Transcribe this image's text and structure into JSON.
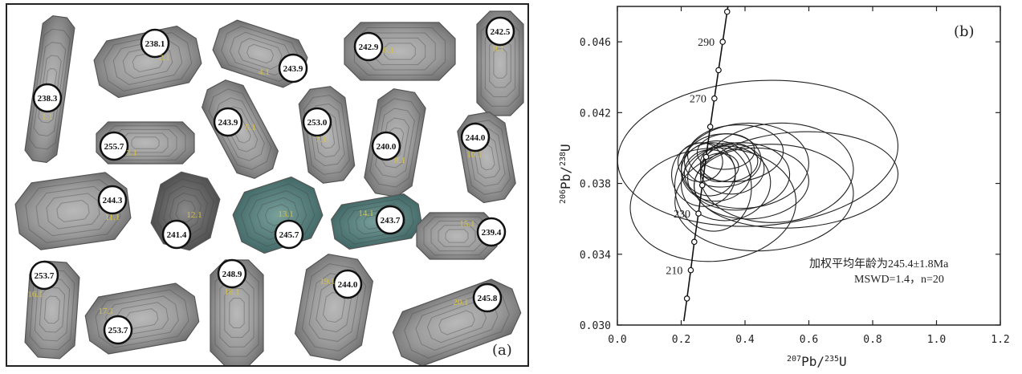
{
  "panel_a": {
    "label": "(a)",
    "grains": [
      {
        "spot": "1.1",
        "age": "238.3"
      },
      {
        "spot": "2.1",
        "age": "238.1"
      },
      {
        "spot": "3.1",
        "age": "255.7"
      },
      {
        "spot": "4.1",
        "age": "243.9"
      },
      {
        "spot": "5.1",
        "age": "243.9"
      },
      {
        "spot": "6.1",
        "age": "242.9"
      },
      {
        "spot": "7.1",
        "age": "253.0"
      },
      {
        "spot": "8.1",
        "age": "240.0"
      },
      {
        "spot": "9.1",
        "age": "242.5"
      },
      {
        "spot": "10.1",
        "age": "244.0"
      },
      {
        "spot": "11.1",
        "age": "244.3"
      },
      {
        "spot": "12.1",
        "age": "241.4"
      },
      {
        "spot": "13.1",
        "age": "245.7"
      },
      {
        "spot": "14.1",
        "age": "243.7"
      },
      {
        "spot": "15.1",
        "age": "239.4"
      },
      {
        "spot": "16.1",
        "age": "253.7"
      },
      {
        "spot": "17.1",
        "age": "253.7"
      },
      {
        "spot": "18.1",
        "age": "248.9"
      },
      {
        "spot": "19.1",
        "age": "244.0"
      },
      {
        "spot": "20.1",
        "age": "245.8"
      }
    ]
  },
  "chart_data": {
    "type": "scatter",
    "panel_label": "(b)",
    "xlabel": "207Pb/235U",
    "ylabel": "206Pb/238U",
    "xlim": [
      0.0,
      1.2
    ],
    "ylim": [
      0.03,
      0.048
    ],
    "x_ticks": [
      "0.0",
      "0.2",
      "0.4",
      "0.6",
      "0.8",
      "1.0",
      "1.2"
    ],
    "y_ticks": [
      "0.030",
      "0.034",
      "0.038",
      "0.042",
      "0.046"
    ],
    "concordia_ages_labeled": [
      "210",
      "230",
      "270",
      "290"
    ],
    "concordia_points": [
      {
        "age": 200,
        "x": 0.218,
        "y": 0.0315
      },
      {
        "age": 210,
        "x": 0.23,
        "y": 0.0331
      },
      {
        "age": 220,
        "x": 0.241,
        "y": 0.0347
      },
      {
        "age": 230,
        "x": 0.254,
        "y": 0.0363
      },
      {
        "age": 240,
        "x": 0.266,
        "y": 0.0379
      },
      {
        "age": 250,
        "x": 0.278,
        "y": 0.0395
      },
      {
        "age": 260,
        "x": 0.291,
        "y": 0.0412
      },
      {
        "age": 270,
        "x": 0.304,
        "y": 0.0428
      },
      {
        "age": 280,
        "x": 0.317,
        "y": 0.0444
      },
      {
        "age": 290,
        "x": 0.33,
        "y": 0.046
      },
      {
        "age": 300,
        "x": 0.344,
        "y": 0.0477
      }
    ],
    "error_ellipses": [
      {
        "cx": 0.44,
        "cy": 0.0397,
        "rx": 0.44,
        "ry": 0.0041
      },
      {
        "cx": 0.56,
        "cy": 0.0382,
        "rx": 0.32,
        "ry": 0.0027
      },
      {
        "cx": 0.46,
        "cy": 0.0372,
        "rx": 0.28,
        "ry": 0.003
      },
      {
        "cx": 0.3,
        "cy": 0.0368,
        "rx": 0.26,
        "ry": 0.0032
      },
      {
        "cx": 0.42,
        "cy": 0.038,
        "rx": 0.18,
        "ry": 0.002
      },
      {
        "cx": 0.38,
        "cy": 0.0384,
        "rx": 0.16,
        "ry": 0.0019
      },
      {
        "cx": 0.34,
        "cy": 0.038,
        "rx": 0.14,
        "ry": 0.0021
      },
      {
        "cx": 0.33,
        "cy": 0.0393,
        "rx": 0.12,
        "ry": 0.0015
      },
      {
        "cx": 0.31,
        "cy": 0.0387,
        "rx": 0.11,
        "ry": 0.0017
      },
      {
        "cx": 0.35,
        "cy": 0.0392,
        "rx": 0.09,
        "ry": 0.0011
      },
      {
        "cx": 0.29,
        "cy": 0.0386,
        "rx": 0.08,
        "ry": 0.0013
      },
      {
        "cx": 0.36,
        "cy": 0.0388,
        "rx": 0.1,
        "ry": 0.0014
      },
      {
        "cx": 0.32,
        "cy": 0.0389,
        "rx": 0.06,
        "ry": 0.0008
      },
      {
        "cx": 0.27,
        "cy": 0.0385,
        "rx": 0.1,
        "ry": 0.0018
      },
      {
        "cx": 0.37,
        "cy": 0.0397,
        "rx": 0.15,
        "ry": 0.0016
      },
      {
        "cx": 0.4,
        "cy": 0.039,
        "rx": 0.2,
        "ry": 0.0024
      },
      {
        "cx": 0.3,
        "cy": 0.0378,
        "rx": 0.12,
        "ry": 0.0025
      },
      {
        "cx": 0.34,
        "cy": 0.0398,
        "rx": 0.09,
        "ry": 0.001
      },
      {
        "cx": 0.5,
        "cy": 0.0386,
        "rx": 0.24,
        "ry": 0.0028
      },
      {
        "cx": 0.26,
        "cy": 0.0392,
        "rx": 0.07,
        "ry": 0.0011
      }
    ],
    "annotation_line1": "加权平均年龄为245.4±1.8Ma",
    "annotation_line2": "MSWD=1.4，n=20"
  },
  "colors": {
    "axis": "#222222",
    "ellipse": "#222222",
    "spot_label": "#d9c440",
    "grain_gray": "#8f8f8f",
    "grain_green": "#4f7a78"
  }
}
